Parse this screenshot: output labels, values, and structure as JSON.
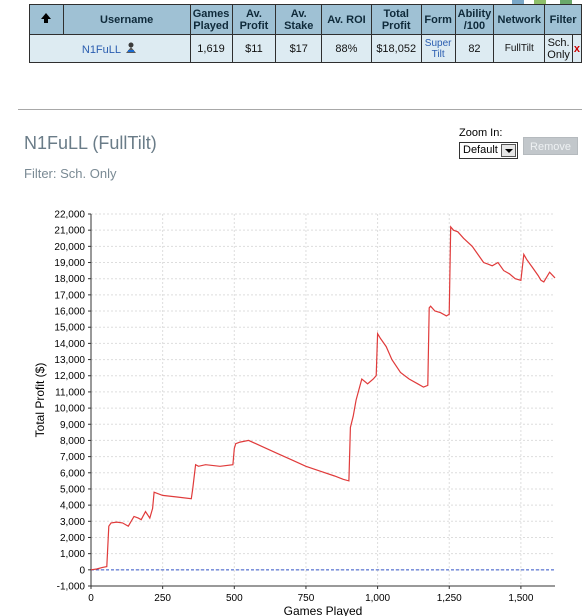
{
  "table": {
    "headers": [
      {
        "key": "sort",
        "label": ""
      },
      {
        "key": "username",
        "label": "Username"
      },
      {
        "key": "games",
        "label": "Games Played"
      },
      {
        "key": "avprofit",
        "label": "Av. Profit"
      },
      {
        "key": "avstake",
        "label": "Av. Stake"
      },
      {
        "key": "avroi",
        "label": "Av. ROI"
      },
      {
        "key": "total",
        "label": "Total Profit"
      },
      {
        "key": "form",
        "label": "Form"
      },
      {
        "key": "ability",
        "label": "Ability /100"
      },
      {
        "key": "network",
        "label": "Network"
      },
      {
        "key": "filter",
        "label": "Filter"
      }
    ],
    "row": {
      "username": "N1FuLL",
      "games_played": "1,619",
      "av_profit": "$11",
      "av_stake": "$17",
      "av_roi": "88%",
      "total_profit": "$18,052",
      "form": "Super Tilt",
      "ability": "82",
      "network": "FullTilt",
      "filter": "Sch. Only",
      "remove": "x"
    }
  },
  "header": {
    "title": "N1FuLL (FullTilt)",
    "filter_text": "Filter: Sch. Only"
  },
  "zoom": {
    "label": "Zoom In:",
    "selected": "Default"
  },
  "remove_button": "Remove",
  "icons": [
    "sort-arrow-icon",
    "poker-player-icon",
    "dropdown-arrow-icon"
  ],
  "colors": {
    "header_bg": "#9fc1d4",
    "row_bg": "#ddebf2",
    "line": "#e03b3b",
    "link": "#2a5db0"
  },
  "chart_data": {
    "type": "line",
    "xlabel": "Games Played",
    "ylabel": "Total Profit ($)",
    "xlim": [
      0,
      1619
    ],
    "ylim": [
      -1000,
      22000
    ],
    "xticks": [
      0,
      250,
      500,
      750,
      1000,
      1250,
      1500
    ],
    "xtick_labels": [
      "0",
      "250",
      "500",
      "750",
      "1,000",
      "1,250",
      "1,500"
    ],
    "yticks": [
      -1000,
      0,
      1000,
      2000,
      3000,
      4000,
      5000,
      6000,
      7000,
      8000,
      9000,
      10000,
      11000,
      12000,
      13000,
      14000,
      15000,
      16000,
      17000,
      18000,
      19000,
      20000,
      21000,
      22000
    ],
    "ytick_labels": [
      "-1,000",
      "0",
      "1,000",
      "2,000",
      "3,000",
      "4,000",
      "5,000",
      "6,000",
      "7,000",
      "8,000",
      "9,000",
      "10,000",
      "11,000",
      "12,000",
      "13,000",
      "14,000",
      "15,000",
      "16,000",
      "17,000",
      "18,000",
      "19,000",
      "20,000",
      "21,000",
      "22,000"
    ],
    "grid": true,
    "series": [
      {
        "x": [
          0,
          20,
          40,
          55,
          62,
          70,
          90,
          110,
          130,
          150,
          165,
          175,
          190,
          205,
          215,
          220,
          250,
          300,
          350,
          355,
          365,
          375,
          400,
          450,
          495,
          500,
          505,
          520,
          550,
          600,
          650,
          700,
          750,
          800,
          850,
          880,
          900,
          905,
          915,
          925,
          945,
          965,
          985,
          995,
          1000,
          1010,
          1030,
          1050,
          1080,
          1110,
          1140,
          1160,
          1175,
          1180,
          1185,
          1200,
          1220,
          1240,
          1250,
          1255,
          1265,
          1280,
          1300,
          1330,
          1350,
          1370,
          1385,
          1400,
          1420,
          1440,
          1460,
          1480,
          1500,
          1510,
          1520,
          1540,
          1560,
          1570,
          1580,
          1600,
          1619
        ],
        "y": [
          0,
          50,
          150,
          200,
          2700,
          2900,
          2950,
          2900,
          2700,
          3300,
          3200,
          3100,
          3600,
          3200,
          3800,
          4800,
          4600,
          4500,
          4400,
          5000,
          6500,
          6400,
          6500,
          6400,
          6500,
          7500,
          7800,
          7900,
          8000,
          7600,
          7200,
          6800,
          6400,
          6100,
          5800,
          5600,
          5500,
          8800,
          9500,
          10500,
          11800,
          11500,
          11800,
          12000,
          14600,
          14300,
          13800,
          13000,
          12200,
          11800,
          11500,
          11300,
          11400,
          16200,
          16300,
          16000,
          15900,
          15700,
          15800,
          21200,
          21000,
          20900,
          20500,
          20000,
          19500,
          19000,
          18900,
          18800,
          19000,
          18500,
          18300,
          18000,
          17900,
          19500,
          19200,
          18700,
          18200,
          17900,
          17800,
          18400,
          18052
        ]
      }
    ]
  }
}
